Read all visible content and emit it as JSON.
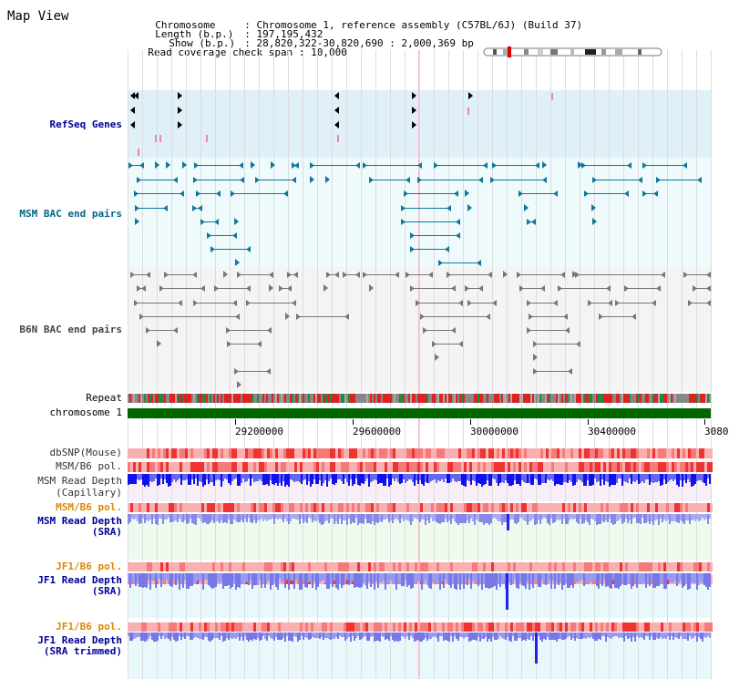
{
  "app": {
    "title": "Map View"
  },
  "header": {
    "chromosome_label": "Chromosome",
    "chromosome_value": "Chromosome 1, reference assembly (C57BL/6J) (Build 37)",
    "length_label": "Length (b.p.)",
    "length_value": "197,195,432",
    "show_label": "Show (b.p.)",
    "show_value": "28,820,322-30,820,690 : 2,000,369 bp",
    "coverage_label": "Read coverage check span",
    "coverage_value": "10,000",
    "separator": ":"
  },
  "tracks": {
    "refseq_genes": "RefSeq Genes",
    "msm_bac": "MSM BAC end pairs",
    "b6n_bac": "B6N BAC end pairs",
    "repeat": "Repeat",
    "chromosome": "chromosome 1",
    "dbsnp": "dbSNP(Mouse)",
    "msm_b6_pol_1": "MSM/B6 pol.",
    "msm_read_depth_cap_1": "MSM Read Depth",
    "msm_read_depth_cap_2": "(Capillary)",
    "msm_b6_pol_2": "MSM/B6 pol.",
    "msm_read_depth_sra_1": "MSM Read Depth",
    "msm_read_depth_sra_2": "(SRA)",
    "jf1_b6_pol_1": "JF1/B6 pol.",
    "jf1_read_depth_sra_1": "JF1 Read Depth",
    "jf1_read_depth_sra_2": "(SRA)",
    "jf1_b6_pol_2": "JF1/B6 pol.",
    "jf1_read_depth_trim_1": "JF1 Read Depth",
    "jf1_read_depth_trim_2": "(SRA trimmed)"
  },
  "axis": {
    "ticks": [
      "29200000",
      "29600000",
      "30000000",
      "30400000",
      "3080"
    ]
  },
  "colors": {
    "refseq_bg": "#dff0f8",
    "msm_bg": "#eefafb",
    "b6n_bg": "#f4f4f4",
    "chromosome_bar": "#006600",
    "refseq_label": "#000099",
    "msm_label": "#006688",
    "b6n_label": "#444444",
    "orange_label": "#dd8800",
    "blue_label": "#000099",
    "depth_blue": "#2222ee",
    "depth_light": "#8888ee"
  }
}
